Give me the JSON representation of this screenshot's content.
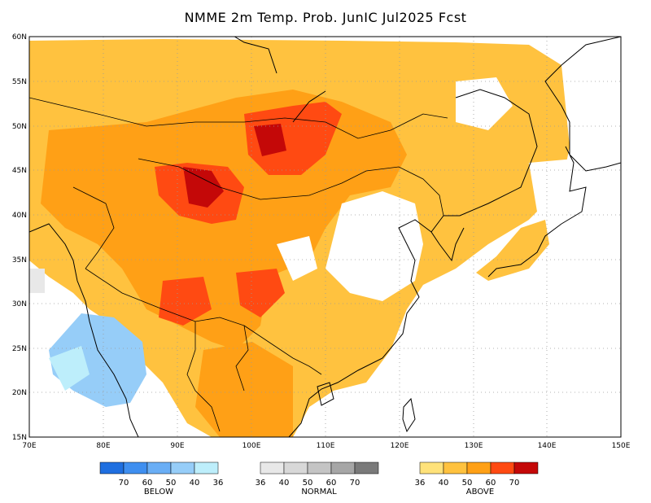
{
  "title": "NMME 2m Temp. Prob. JunIC  Jul2025 Fcst",
  "map": {
    "lon_range": [
      70,
      150
    ],
    "lat_range": [
      15,
      60
    ],
    "lat_ticks": [
      "60N",
      "55N",
      "50N",
      "45N",
      "40N",
      "35N",
      "30N",
      "25N",
      "20N",
      "15N"
    ],
    "lon_ticks": [
      "70E",
      "80E",
      "90E",
      "100E",
      "110E",
      "120E",
      "130E",
      "140E",
      "150E"
    ]
  },
  "legend": {
    "below": {
      "title": "BELOW",
      "values": [
        "70",
        "60",
        "50",
        "40",
        "36"
      ],
      "colors": [
        "#1f6fe0",
        "#3f8ff0",
        "#6aaef5",
        "#96cdf8",
        "#bdeefb"
      ]
    },
    "normal": {
      "title": "NORMAL",
      "values": [
        "36",
        "40",
        "50",
        "60",
        "70"
      ],
      "colors": [
        "#e8e8e8",
        "#d8d8d8",
        "#c4c4c4",
        "#a6a6a6",
        "#7a7a7a"
      ]
    },
    "above": {
      "title": "ABOVE",
      "values": [
        "36",
        "40",
        "50",
        "60",
        "70"
      ],
      "colors": [
        "#ffe27a",
        "#ffc23f",
        "#ffa016",
        "#ff4a12",
        "#c40808"
      ]
    }
  }
}
